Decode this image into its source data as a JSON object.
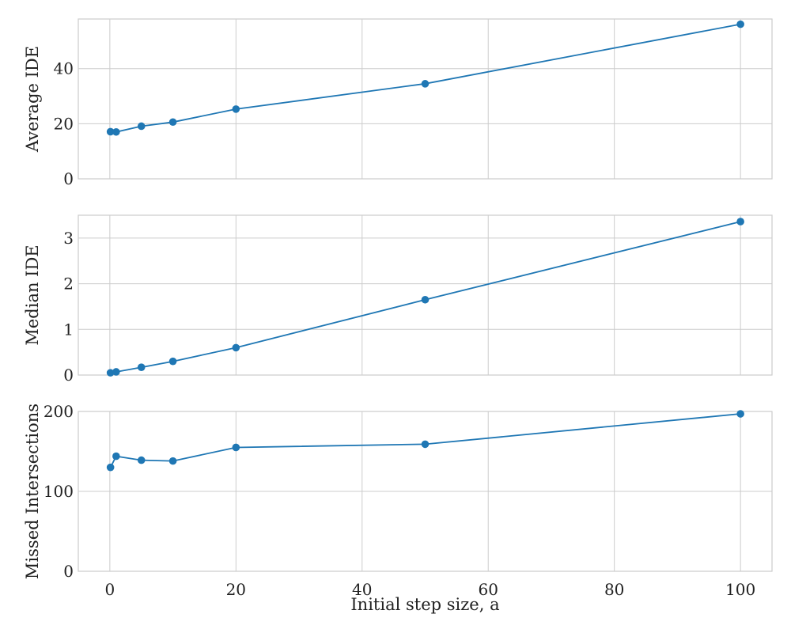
{
  "chart_data": [
    {
      "type": "line",
      "ylabel": "Average IDE",
      "xlim": [
        -5,
        105
      ],
      "ylim": [
        0,
        58
      ],
      "yticks": [
        0,
        20,
        40
      ],
      "grid": true,
      "series": [
        {
          "x": [
            0.1,
            1,
            5,
            10,
            20,
            50,
            100
          ],
          "y": [
            17.1,
            17.0,
            19.1,
            20.6,
            25.3,
            34.5,
            56.1
          ]
        }
      ]
    },
    {
      "type": "line",
      "ylabel": "Median IDE",
      "xlim": [
        -5,
        105
      ],
      "ylim": [
        0,
        3.5
      ],
      "yticks": [
        0,
        1,
        2,
        3
      ],
      "grid": true,
      "series": [
        {
          "x": [
            0.1,
            1,
            5,
            10,
            20,
            50,
            100
          ],
          "y": [
            0.05,
            0.07,
            0.17,
            0.3,
            0.6,
            1.65,
            3.36
          ]
        }
      ]
    },
    {
      "type": "line",
      "ylabel": "Missed Intersections",
      "xlabel": "Initial step size, a",
      "xlim": [
        -5,
        105
      ],
      "ylim": [
        0,
        200
      ],
      "yticks": [
        0,
        100,
        200
      ],
      "xticks": [
        0,
        20,
        40,
        60,
        80,
        100
      ],
      "grid": true,
      "series": [
        {
          "x": [
            0.1,
            1,
            5,
            10,
            20,
            50,
            100
          ],
          "y": [
            130,
            144,
            139,
            138,
            155,
            159,
            197
          ]
        }
      ]
    }
  ],
  "colors": {
    "series": "#1f77b4",
    "grid": "#cccccc",
    "text": "#222222"
  }
}
